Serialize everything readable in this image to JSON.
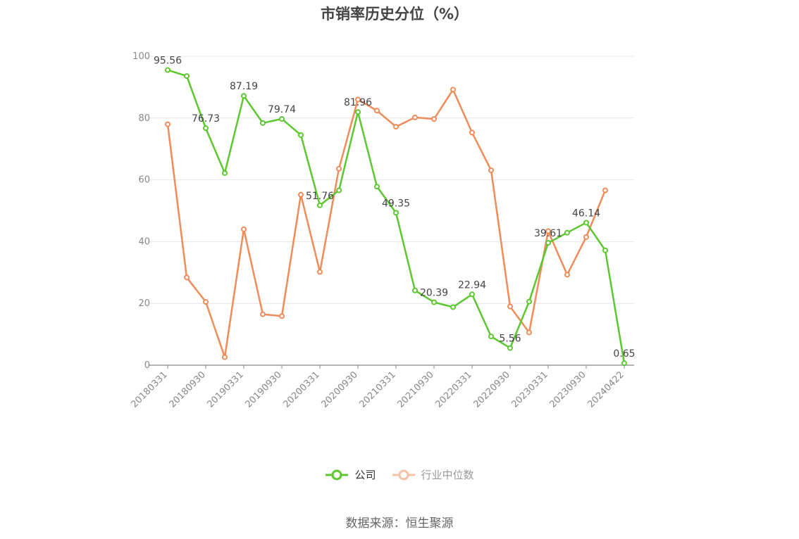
{
  "title": "市销率历史分位（%）",
  "source": "数据来源：恒生聚源",
  "colors": {
    "company": "#5cc72f",
    "industry": "#f08c5a",
    "industry_legend": "#f7c0a8",
    "grid": "#e6e6ec",
    "axis": "#888888"
  },
  "chart_data": {
    "type": "line",
    "title": "市销率历史分位（%）",
    "ylim": [
      0,
      100
    ],
    "y_ticks": [
      0,
      20,
      40,
      60,
      80,
      100
    ],
    "grid": true,
    "legend_position": "bottom",
    "x": [
      "20180331",
      "20180630",
      "20180930",
      "20181231",
      "20190331",
      "20190630",
      "20190930",
      "20191231",
      "20200331",
      "20200630",
      "20200930",
      "20201231",
      "20210331",
      "20210630",
      "20210930",
      "20211231",
      "20220331",
      "20220630",
      "20220930",
      "20221231",
      "20230331",
      "20230630",
      "20230930",
      "20231231",
      "20240422"
    ],
    "x_tick_labels": [
      "20180331",
      "20180930",
      "20190331",
      "20190930",
      "20200331",
      "20200930",
      "20210331",
      "20210930",
      "20220331",
      "20220930",
      "20230331",
      "20230930",
      "20240422"
    ],
    "series": [
      {
        "name": "公司",
        "values": [
          95.56,
          93.6,
          76.73,
          62.2,
          87.19,
          78.4,
          79.74,
          74.5,
          51.76,
          56.6,
          81.96,
          57.8,
          49.35,
          24.2,
          20.39,
          18.8,
          22.94,
          9.3,
          5.56,
          20.6,
          39.61,
          42.9,
          46.14,
          37.2,
          0.65
        ],
        "data_labels": {
          "0": "95.56",
          "2": "76.73",
          "4": "87.19",
          "6": "79.74",
          "8": "51.76",
          "10": "81.96",
          "12": "49.35",
          "14": "20.39",
          "16": "22.94",
          "18": "5.56",
          "20": "39.61",
          "22": "46.14",
          "24": "0.65"
        }
      },
      {
        "name": "行业中位数",
        "values": [
          78.0,
          28.4,
          20.5,
          2.6,
          44.0,
          16.5,
          15.9,
          55.2,
          30.2,
          63.6,
          86.0,
          82.4,
          77.2,
          80.2,
          79.7,
          89.2,
          75.3,
          63.1,
          19.0,
          10.6,
          43.4,
          29.3,
          41.5,
          56.6,
          null
        ]
      }
    ]
  }
}
